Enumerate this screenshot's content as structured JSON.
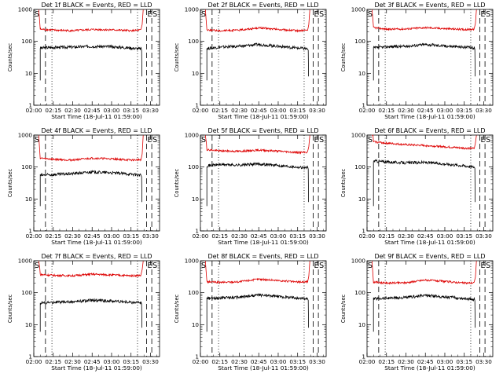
{
  "colors": {
    "events": "#000000",
    "lld": "#dd0000"
  },
  "chart_data": [
    {
      "type": "line",
      "title": "Det 1f BLACK = Events, RED = LLD",
      "xlabel": "Start Time (18-Jul-11 01:59:00)",
      "ylabel": "Counts/sec",
      "yscale": "log",
      "ylim": [
        1,
        1000
      ],
      "yticks": [
        "1",
        "10",
        "100",
        "1000"
      ],
      "xlim": [
        "02:00",
        "03:37"
      ],
      "xticks": [
        "02:00",
        "02:15",
        "02:30",
        "02:45",
        "03:00",
        "03:15",
        "03:30"
      ],
      "markers": [
        {
          "label": "S",
          "x": "02:00"
        },
        {
          "label": "E",
          "x": "03:27"
        },
        {
          "label": "S",
          "x": "03:31"
        }
      ],
      "series": [
        {
          "name": "Events",
          "color": "#000000",
          "x": [
            "02:05",
            "02:15",
            "02:30",
            "02:45",
            "03:00",
            "03:15",
            "03:23"
          ],
          "y": [
            62,
            65,
            66,
            70,
            68,
            62,
            58
          ]
        },
        {
          "name": "LLD",
          "color": "#dd0000",
          "x": [
            "02:05",
            "02:15",
            "02:30",
            "02:45",
            "03:00",
            "03:15",
            "03:23"
          ],
          "y": [
            240,
            225,
            215,
            235,
            230,
            215,
            225
          ]
        }
      ]
    },
    {
      "type": "line",
      "title": "Det 2f BLACK = Events, RED = LLD",
      "xlabel": "Start Time (18-Jul-11 01:59:00)",
      "ylabel": "Counts/sec",
      "yscale": "log",
      "ylim": [
        1,
        1000
      ],
      "yticks": [
        "1",
        "10",
        "100",
        "1000"
      ],
      "xlim": [
        "02:00",
        "03:37"
      ],
      "xticks": [
        "02:00",
        "02:15",
        "02:30",
        "02:45",
        "03:00",
        "03:15",
        "03:30"
      ],
      "markers": [
        {
          "label": "S",
          "x": "02:00"
        },
        {
          "label": "E",
          "x": "03:27"
        },
        {
          "label": "S",
          "x": "03:31"
        }
      ],
      "series": [
        {
          "name": "Events",
          "color": "#000000",
          "x": [
            "02:05",
            "02:15",
            "02:30",
            "02:45",
            "03:00",
            "03:15",
            "03:23"
          ],
          "y": [
            60,
            66,
            70,
            80,
            70,
            62,
            58
          ]
        },
        {
          "name": "LLD",
          "color": "#dd0000",
          "x": [
            "02:05",
            "02:15",
            "02:30",
            "02:45",
            "03:00",
            "03:15",
            "03:23"
          ],
          "y": [
            230,
            215,
            225,
            265,
            235,
            215,
            225
          ]
        }
      ]
    },
    {
      "type": "line",
      "title": "Det 3f BLACK = Events, RED = LLD",
      "xlabel": "Start Time (18-Jul-11 01:59:00)",
      "ylabel": "Counts/sec",
      "yscale": "log",
      "ylim": [
        1,
        1000
      ],
      "yticks": [
        "1",
        "10",
        "100",
        "1000"
      ],
      "xlim": [
        "02:00",
        "03:37"
      ],
      "xticks": [
        "02:00",
        "02:15",
        "02:30",
        "02:45",
        "03:00",
        "03:15",
        "03:30"
      ],
      "markers": [
        {
          "label": "S",
          "x": "02:00"
        },
        {
          "label": "E",
          "x": "03:27"
        },
        {
          "label": "S",
          "x": "03:31"
        }
      ],
      "series": [
        {
          "name": "Events",
          "color": "#000000",
          "x": [
            "02:05",
            "02:15",
            "02:30",
            "02:45",
            "03:00",
            "03:15",
            "03:23"
          ],
          "y": [
            62,
            68,
            70,
            80,
            72,
            66,
            62
          ]
        },
        {
          "name": "LLD",
          "color": "#dd0000",
          "x": [
            "02:05",
            "02:15",
            "02:30",
            "02:45",
            "03:00",
            "03:15",
            "03:23"
          ],
          "y": [
            270,
            240,
            245,
            270,
            250,
            235,
            240
          ]
        }
      ]
    },
    {
      "type": "line",
      "title": "Det 4f BLACK = Events, RED = LLD",
      "xlabel": "Start Time (18-Jul-11 01:59:00)",
      "ylabel": "Counts/sec",
      "yscale": "log",
      "ylim": [
        1,
        1000
      ],
      "yticks": [
        "1",
        "10",
        "100",
        "1000"
      ],
      "xlim": [
        "02:00",
        "03:37"
      ],
      "xticks": [
        "02:00",
        "02:15",
        "02:30",
        "02:45",
        "03:00",
        "03:15",
        "03:30"
      ],
      "markers": [
        {
          "label": "S",
          "x": "02:00"
        },
        {
          "label": "E",
          "x": "03:27"
        },
        {
          "label": "S",
          "x": "03:31"
        }
      ],
      "series": [
        {
          "name": "Events",
          "color": "#000000",
          "x": [
            "02:05",
            "02:15",
            "02:30",
            "02:45",
            "03:00",
            "03:15",
            "03:23"
          ],
          "y": [
            55,
            58,
            62,
            70,
            66,
            60,
            55
          ]
        },
        {
          "name": "LLD",
          "color": "#dd0000",
          "x": [
            "02:05",
            "02:15",
            "02:30",
            "02:45",
            "03:00",
            "03:15",
            "03:23"
          ],
          "y": [
            190,
            175,
            165,
            190,
            180,
            165,
            170
          ]
        }
      ]
    },
    {
      "type": "line",
      "title": "Det 5f BLACK = Events, RED = LLD",
      "xlabel": "Start Time (18-Jul-11 01:59:00)",
      "ylabel": "Counts/sec",
      "yscale": "log",
      "ylim": [
        1,
        1000
      ],
      "yticks": [
        "1",
        "10",
        "100",
        "1000"
      ],
      "xlim": [
        "02:00",
        "03:37"
      ],
      "xticks": [
        "02:00",
        "02:15",
        "02:30",
        "02:45",
        "03:00",
        "03:15",
        "03:30"
      ],
      "markers": [
        {
          "label": "S",
          "x": "02:00"
        },
        {
          "label": "E",
          "x": "03:27"
        },
        {
          "label": "S",
          "x": "03:31"
        }
      ],
      "series": [
        {
          "name": "Events",
          "color": "#000000",
          "x": [
            "02:05",
            "02:15",
            "02:30",
            "02:45",
            "03:00",
            "03:15",
            "03:23"
          ],
          "y": [
            110,
            120,
            115,
            125,
            112,
            100,
            95
          ]
        },
        {
          "name": "LLD",
          "color": "#dd0000",
          "x": [
            "02:05",
            "02:15",
            "02:30",
            "02:45",
            "03:00",
            "03:15",
            "03:23"
          ],
          "y": [
            350,
            320,
            310,
            340,
            315,
            285,
            290
          ]
        }
      ]
    },
    {
      "type": "line",
      "title": "Det 6f BLACK = Events, RED = LLD",
      "xlabel": "Start Time (18-Jul-11 01:59:00)",
      "ylabel": "Counts/sec",
      "yscale": "log",
      "ylim": [
        1,
        1000
      ],
      "yticks": [
        "1",
        "10",
        "100",
        "1000"
      ],
      "xlim": [
        "02:00",
        "03:37"
      ],
      "xticks": [
        "02:00",
        "02:15",
        "02:30",
        "02:45",
        "03:00",
        "03:15",
        "03:30"
      ],
      "markers": [
        {
          "label": "S",
          "x": "02:00"
        },
        {
          "label": "E",
          "x": "03:27"
        },
        {
          "label": "S",
          "x": "03:31"
        }
      ],
      "series": [
        {
          "name": "Events",
          "color": "#000000",
          "x": [
            "02:05",
            "02:15",
            "02:30",
            "02:45",
            "03:00",
            "03:15",
            "03:23"
          ],
          "y": [
            155,
            145,
            135,
            140,
            125,
            110,
            100
          ]
        },
        {
          "name": "LLD",
          "color": "#dd0000",
          "x": [
            "02:05",
            "02:15",
            "02:30",
            "02:45",
            "03:00",
            "03:15",
            "03:23"
          ],
          "y": [
            620,
            560,
            500,
            470,
            430,
            390,
            380
          ]
        }
      ]
    },
    {
      "type": "line",
      "title": "Det 7f BLACK = Events, RED = LLD",
      "xlabel": "Start Time (18-Jul-11 01:59:00)",
      "ylabel": "Counts/sec",
      "yscale": "log",
      "ylim": [
        1,
        1000
      ],
      "yticks": [
        "1",
        "10",
        "100",
        "1000"
      ],
      "xlim": [
        "02:00",
        "03:37"
      ],
      "xticks": [
        "02:00",
        "02:15",
        "02:30",
        "02:45",
        "03:00",
        "03:15",
        "03:30"
      ],
      "markers": [
        {
          "label": "S",
          "x": "02:00"
        },
        {
          "label": "E",
          "x": "03:27"
        },
        {
          "label": "S",
          "x": "03:31"
        }
      ],
      "series": [
        {
          "name": "Events",
          "color": "#000000",
          "x": [
            "02:05",
            "02:15",
            "02:30",
            "02:45",
            "03:00",
            "03:15",
            "03:23"
          ],
          "y": [
            48,
            50,
            52,
            58,
            55,
            50,
            48
          ]
        },
        {
          "name": "LLD",
          "color": "#dd0000",
          "x": [
            "02:05",
            "02:15",
            "02:30",
            "02:45",
            "03:00",
            "03:15",
            "03:23"
          ],
          "y": [
            370,
            350,
            340,
            380,
            360,
            340,
            350
          ]
        }
      ]
    },
    {
      "type": "line",
      "title": "Det 8f BLACK = Events, RED = LLD",
      "xlabel": "Start Time (18-Jul-11 01:59:00)",
      "ylabel": "Counts/sec",
      "yscale": "log",
      "ylim": [
        1,
        1000
      ],
      "yticks": [
        "1",
        "10",
        "100",
        "1000"
      ],
      "xlim": [
        "02:00",
        "03:37"
      ],
      "xticks": [
        "02:00",
        "02:15",
        "02:30",
        "02:45",
        "03:00",
        "03:15",
        "03:30"
      ],
      "markers": [
        {
          "label": "S",
          "x": "02:00"
        },
        {
          "label": "E",
          "x": "03:27"
        },
        {
          "label": "S",
          "x": "03:31"
        }
      ],
      "series": [
        {
          "name": "Events",
          "color": "#000000",
          "x": [
            "02:05",
            "02:15",
            "02:30",
            "02:45",
            "03:00",
            "03:15",
            "03:23"
          ],
          "y": [
            65,
            70,
            72,
            85,
            76,
            68,
            64
          ]
        },
        {
          "name": "LLD",
          "color": "#dd0000",
          "x": [
            "02:05",
            "02:15",
            "02:30",
            "02:45",
            "03:00",
            "03:15",
            "03:23"
          ],
          "y": [
            220,
            210,
            220,
            265,
            240,
            215,
            220
          ]
        }
      ]
    },
    {
      "type": "line",
      "title": "Det 9f BLACK = Events, RED = LLD",
      "xlabel": "Start Time (18-Jul-11 01:59:00)",
      "ylabel": "Counts/sec",
      "yscale": "log",
      "ylim": [
        1,
        1000
      ],
      "yticks": [
        "1",
        "10",
        "100",
        "1000"
      ],
      "xlim": [
        "02:00",
        "03:37"
      ],
      "xticks": [
        "02:00",
        "02:15",
        "02:30",
        "02:45",
        "03:00",
        "03:15",
        "03:30"
      ],
      "markers": [
        {
          "label": "S",
          "x": "02:00"
        },
        {
          "label": "E",
          "x": "03:27"
        },
        {
          "label": "S",
          "x": "03:31"
        }
      ],
      "series": [
        {
          "name": "Events",
          "color": "#000000",
          "x": [
            "02:05",
            "02:15",
            "02:30",
            "02:45",
            "03:00",
            "03:15",
            "03:23"
          ],
          "y": [
            65,
            68,
            70,
            82,
            74,
            66,
            62
          ]
        },
        {
          "name": "LLD",
          "color": "#dd0000",
          "x": [
            "02:05",
            "02:15",
            "02:30",
            "02:45",
            "03:00",
            "03:15",
            "03:23"
          ],
          "y": [
            215,
            200,
            205,
            250,
            225,
            200,
            205
          ]
        }
      ]
    }
  ]
}
